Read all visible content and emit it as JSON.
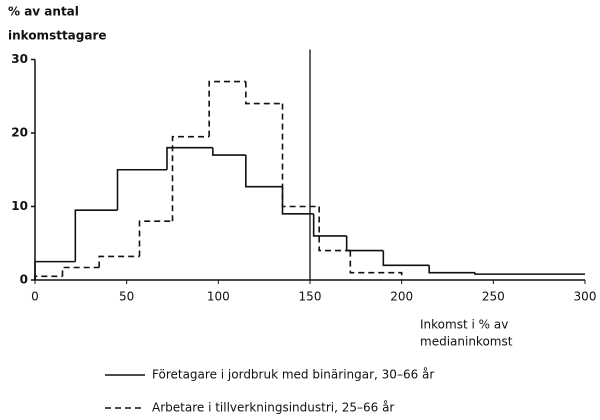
{
  "chart_data": {
    "type": "histogram",
    "ylabel": [
      "% av antal",
      "inkomsttagare"
    ],
    "xlabel": [
      "Inkomst i % av",
      "medianinkomst"
    ],
    "xlim": [
      0,
      300
    ],
    "xticks": [
      0,
      50,
      100,
      150,
      200,
      250,
      300
    ],
    "ylim": [
      0,
      30
    ],
    "yticks": [
      0,
      10,
      20,
      30
    ],
    "series": [
      {
        "name": "Företagare i jordbruk med binäringar, 30–66 år",
        "color": "#111111",
        "dash": "solid",
        "bins": [
          0,
          22,
          45,
          72,
          97,
          115,
          135,
          152,
          170,
          190,
          215,
          240,
          300
        ],
        "values": [
          2.5,
          9.5,
          15,
          18,
          17,
          12.7,
          9,
          6,
          4,
          2,
          1,
          0.8
        ]
      },
      {
        "name": "Arbetare i tillverkningsindustri, 25–66 år",
        "color": "#111111",
        "dash": "dashed",
        "bins": [
          0,
          15,
          35,
          57,
          75,
          95,
          115,
          135,
          155,
          172,
          200
        ],
        "values": [
          0.5,
          1.7,
          3.2,
          8,
          19.5,
          27,
          24,
          10,
          4,
          1
        ]
      }
    ]
  }
}
